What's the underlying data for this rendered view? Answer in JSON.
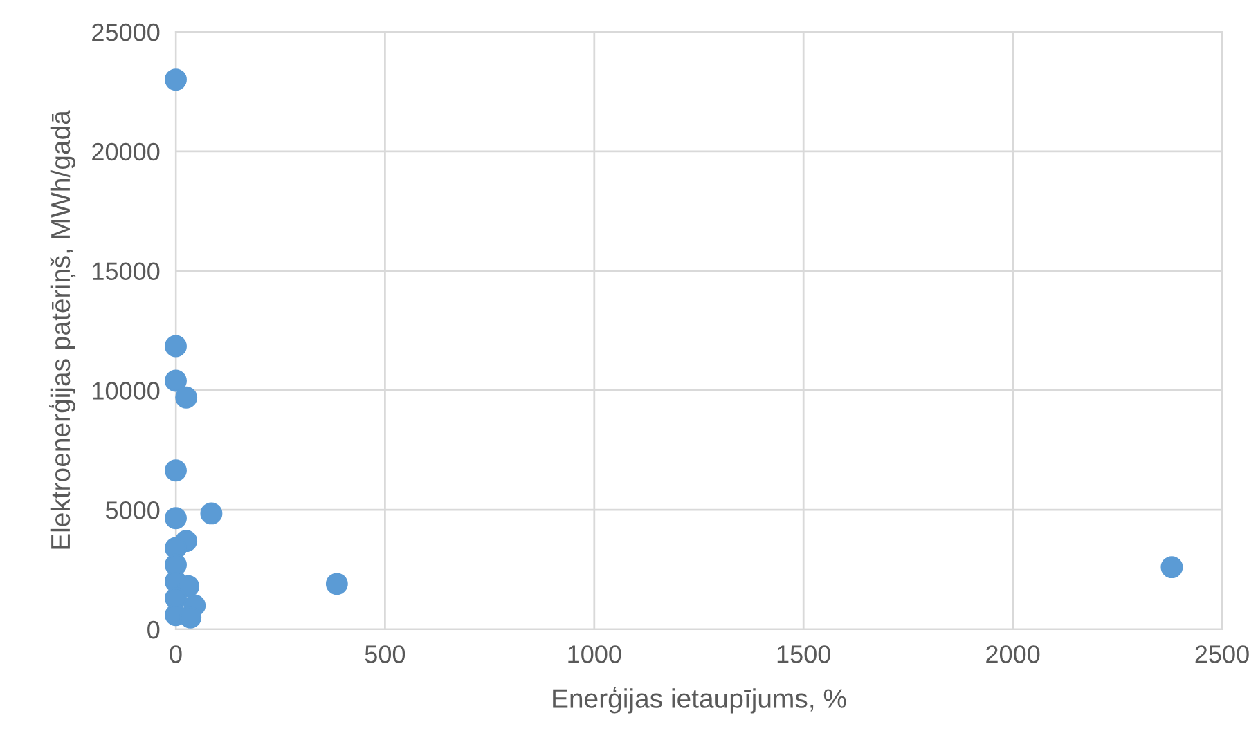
{
  "chart_data": {
    "type": "scatter",
    "xlabel": "Enerģijas ietaupījums, %",
    "ylabel": "Elektroenerģijas patēriņš, MWh/gadā",
    "xlim": [
      0,
      2500
    ],
    "xticks": [
      0,
      500,
      1000,
      1500,
      2000,
      2500
    ],
    "ylim": [
      0,
      25000
    ],
    "yticks": [
      0,
      5000,
      10000,
      15000,
      20000,
      25000
    ],
    "grid": true,
    "series": [
      {
        "color": "#5b9bd5",
        "x": [
          0,
          0,
          0,
          25,
          0,
          0,
          85,
          25,
          0,
          0,
          0,
          30,
          385,
          2380,
          0,
          0,
          45,
          35
        ],
        "values": [
          23000,
          11850,
          10400,
          9700,
          6650,
          4650,
          4850,
          3700,
          3400,
          2700,
          2000,
          1800,
          1900,
          2600,
          1300,
          600,
          1000,
          500
        ]
      }
    ]
  }
}
